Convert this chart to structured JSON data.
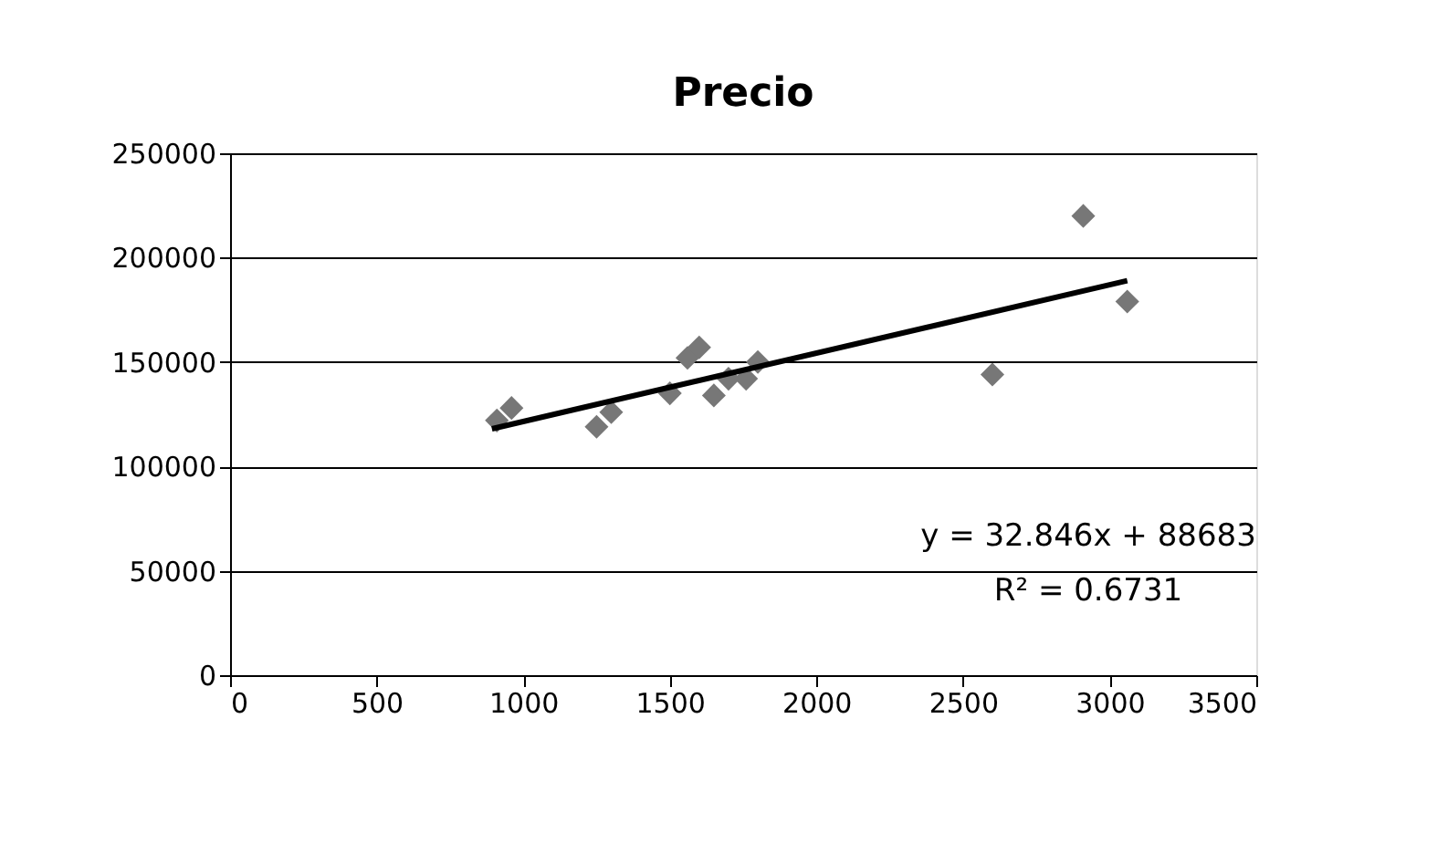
{
  "chart_data": {
    "type": "scatter",
    "title": "Precio",
    "marker": "diamond",
    "grid": "y",
    "xlim": [
      0,
      3500
    ],
    "xticks": [
      0,
      500,
      1000,
      1500,
      2000,
      2500,
      3000,
      3500
    ],
    "ylim": [
      0,
      250000
    ],
    "yticks": [
      0,
      50000,
      100000,
      150000,
      200000,
      250000
    ],
    "annotations": [
      "y = 32.846x + 88683",
      "R² = 0.6731"
    ],
    "series": [
      {
        "color": "#777777",
        "x": [
          910,
          960,
          1250,
          1300,
          1500,
          1560,
          1600,
          1650,
          1700,
          1760,
          1800,
          2600,
          2910,
          3060
        ],
        "values": [
          122000,
          128000,
          119000,
          126000,
          135000,
          152000,
          157000,
          134000,
          142000,
          142000,
          150000,
          144000,
          220000,
          179000
        ]
      },
      {
        "type": "line",
        "marker": "none",
        "color": "#000000",
        "x": [
          893,
          3060
        ],
        "values": [
          118000,
          189000
        ]
      }
    ]
  }
}
